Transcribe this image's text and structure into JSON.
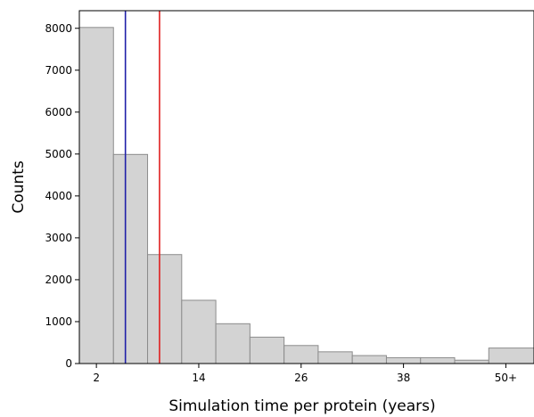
{
  "chart_data": {
    "type": "bar",
    "title": "",
    "xlabel": "Simulation time per protein (years)",
    "ylabel": "Counts",
    "x_tick_labels": [
      "2",
      "14",
      "26",
      "38",
      "50+"
    ],
    "x_tick_values": [
      2,
      14,
      26,
      38,
      50
    ],
    "y_ticks": [
      0,
      1000,
      2000,
      3000,
      4000,
      5000,
      6000,
      7000,
      8000
    ],
    "ylim": [
      0,
      8420
    ],
    "xlim": [
      0,
      53.3
    ],
    "bins": [
      {
        "start": 0,
        "end": 4,
        "count": 8020
      },
      {
        "start": 4,
        "end": 8,
        "count": 4990
      },
      {
        "start": 8,
        "end": 12,
        "count": 2600
      },
      {
        "start": 12,
        "end": 16,
        "count": 1510
      },
      {
        "start": 16,
        "end": 20,
        "count": 950
      },
      {
        "start": 20,
        "end": 24,
        "count": 630
      },
      {
        "start": 24,
        "end": 28,
        "count": 430
      },
      {
        "start": 28,
        "end": 32,
        "count": 280
      },
      {
        "start": 32,
        "end": 36,
        "count": 190
      },
      {
        "start": 36,
        "end": 40,
        "count": 140
      },
      {
        "start": 40,
        "end": 44,
        "count": 140
      },
      {
        "start": 44,
        "end": 48,
        "count": 80
      },
      {
        "start": 48,
        "end": 53.3,
        "count": 370
      }
    ],
    "reference_lines": [
      {
        "x": 5.4,
        "color": "#1f1fa8"
      },
      {
        "x": 9.4,
        "color": "#e02020"
      }
    ],
    "bar_color": "#d3d3d3",
    "bar_edge_color": "#8c8c8c",
    "grid": false,
    "legend": "none"
  }
}
